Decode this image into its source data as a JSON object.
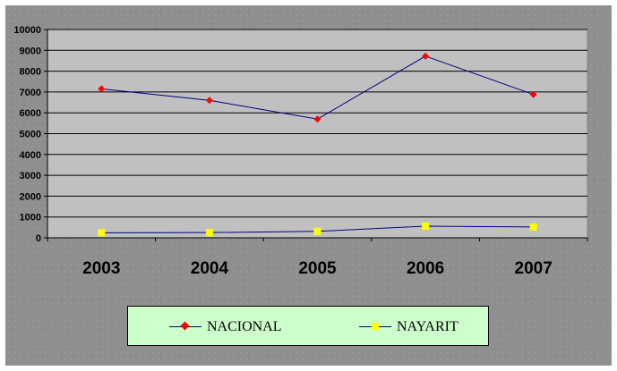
{
  "chart_data": {
    "type": "line",
    "categories": [
      "2003",
      "2004",
      "2005",
      "2006",
      "2007"
    ],
    "series": [
      {
        "name": "NACIONAL",
        "values": [
          7150,
          6600,
          5700,
          8720,
          6880
        ],
        "line_color": "#000080",
        "marker": "diamond",
        "marker_color": "#ff0000"
      },
      {
        "name": "NAYARIT",
        "values": [
          240,
          250,
          310,
          560,
          520
        ],
        "line_color": "#000080",
        "marker": "square",
        "marker_color": "#ffff00"
      }
    ],
    "ylim": [
      0,
      10000
    ],
    "yticks": [
      "0",
      "1000",
      "2000",
      "3000",
      "4000",
      "5000",
      "6000",
      "7000",
      "8000",
      "9000",
      "10000"
    ],
    "grid": true,
    "plot_background": "#c0c0c0",
    "chart_background": "#8f8f8f",
    "legend_position": "bottom",
    "legend_background": "#ccffcc"
  }
}
